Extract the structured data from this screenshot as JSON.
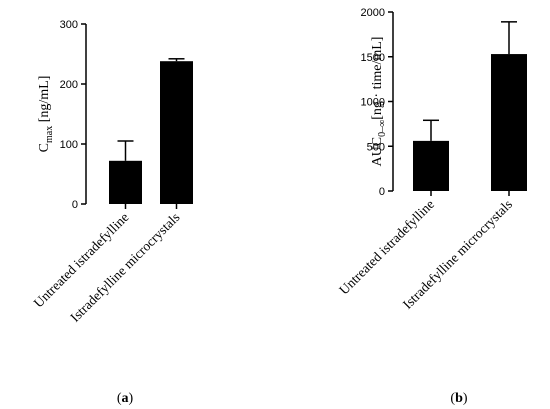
{
  "chart_data": [
    {
      "type": "bar",
      "panel_label": "(a)",
      "categories": [
        "Untreated istradefylline",
        "Istradefylline microcrystals"
      ],
      "values": [
        72,
        238
      ],
      "errors": [
        33,
        4
      ],
      "ylabel_main": "C",
      "ylabel_sub": "max",
      "ylabel_rest": " [ng/mL]",
      "ylim": [
        0,
        300
      ],
      "yticks": [
        0,
        100,
        200,
        300
      ],
      "bar_color": "#000000"
    },
    {
      "type": "bar",
      "panel_label": "(b)",
      "categories": [
        "Untreated istradefylline",
        "Istradefylline microcrystals"
      ],
      "values": [
        560,
        1530
      ],
      "errors": [
        230,
        360
      ],
      "ylabel_main": "AUC",
      "ylabel_sub": "0–∞",
      "ylabel_rest": "[ng · time/mL]",
      "ylim": [
        0,
        2000
      ],
      "yticks": [
        0,
        500,
        1000,
        1500,
        2000
      ],
      "bar_color": "#000000"
    }
  ]
}
